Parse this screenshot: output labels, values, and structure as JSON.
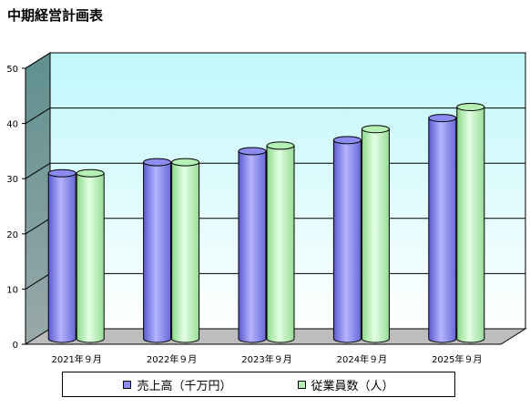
{
  "chart_data": {
    "type": "bar",
    "title": "中期経営計画表",
    "categories": [
      "2021年９月",
      "2022年９月",
      "2023年９月",
      "2024年９月",
      "2025年９月"
    ],
    "series": [
      {
        "name": "売上高（千万円）",
        "values": [
          30,
          32,
          34,
          36,
          40
        ],
        "color": "#8c8cf0"
      },
      {
        "name": "従業員数（人）",
        "values": [
          30,
          32,
          35,
          38,
          42
        ],
        "color": "#b4f0b4"
      }
    ],
    "yticks": [
      0,
      10,
      20,
      30,
      40,
      50
    ],
    "ylim": [
      0,
      50
    ],
    "xlabel": "",
    "ylabel": "",
    "grid": true,
    "legend_position": "bottom",
    "wall_color": "#e6ffff",
    "floor_color": "#bdbdbd",
    "side_wall_color": "#74a0a0"
  }
}
